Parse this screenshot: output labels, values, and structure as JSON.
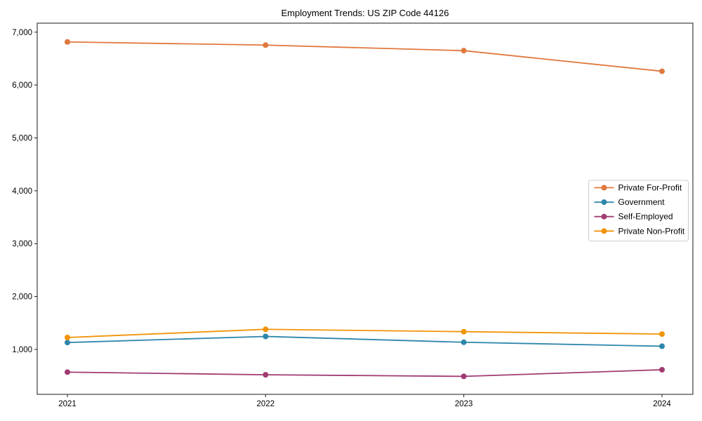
{
  "figure": {
    "background": "#ffffff",
    "spine_color": "#1a1a1a"
  },
  "chart_data": {
    "type": "line",
    "title": "Employment Trends: US ZIP Code 44126",
    "xlabel": "",
    "ylabel": "",
    "categories": [
      "2021",
      "2022",
      "2023",
      "2024"
    ],
    "x": [
      2021,
      2022,
      2023,
      2024
    ],
    "series": [
      {
        "name": "Private For-Profit",
        "color": "#E0783E",
        "values": [
          6815,
          6755,
          6650,
          6260
        ]
      },
      {
        "name": "Government",
        "color": "#2E86AB",
        "values": [
          1130,
          1245,
          1135,
          1060
        ]
      },
      {
        "name": "Self-Employed",
        "color": "#A23B72",
        "values": [
          570,
          520,
          490,
          615
        ]
      },
      {
        "name": "Private Non-Profit",
        "color": "#F1940A",
        "values": [
          1225,
          1380,
          1335,
          1290
        ]
      }
    ],
    "ylim": [
      150,
      7170
    ],
    "yticks": [
      1000,
      2000,
      3000,
      4000,
      5000,
      6000,
      7000
    ],
    "ytick_labels": [
      "1,000",
      "2,000",
      "3,000",
      "4,000",
      "5,000",
      "6,000",
      "7,000"
    ],
    "grid": false,
    "marker": "circle",
    "legend_position": "center-right",
    "legend_entries": [
      "Private For-Profit",
      "Government",
      "Self-Employed",
      "Private Non-Profit"
    ]
  }
}
